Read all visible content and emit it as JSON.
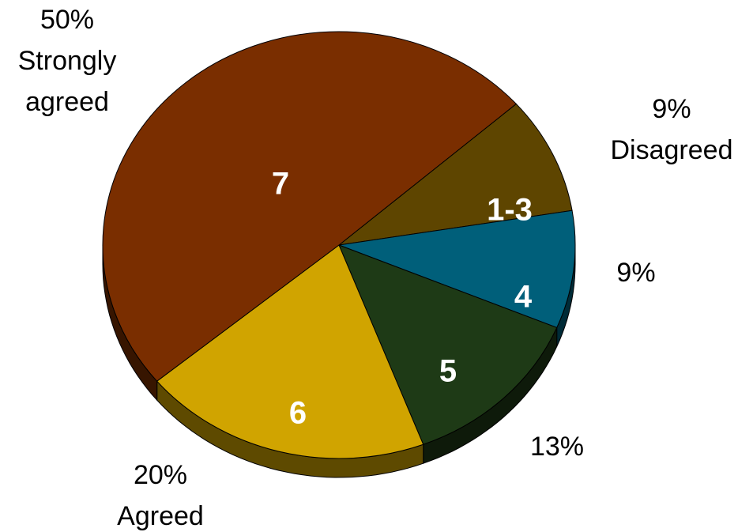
{
  "chart_data": {
    "type": "pie",
    "categories": [
      "1-3",
      "4",
      "5",
      "6",
      "7"
    ],
    "values": [
      9,
      9,
      13,
      20,
      50
    ],
    "value_labels": [
      "9%",
      "9%",
      "13%",
      "20%",
      "50%"
    ],
    "descriptions": [
      "Disagreed",
      null,
      null,
      "Agreed",
      "Strongly agreed"
    ],
    "colors": [
      "#5e4500",
      "#005f7a",
      "#1e3a16",
      "#d0a400",
      "#7a2e00"
    ]
  }
}
